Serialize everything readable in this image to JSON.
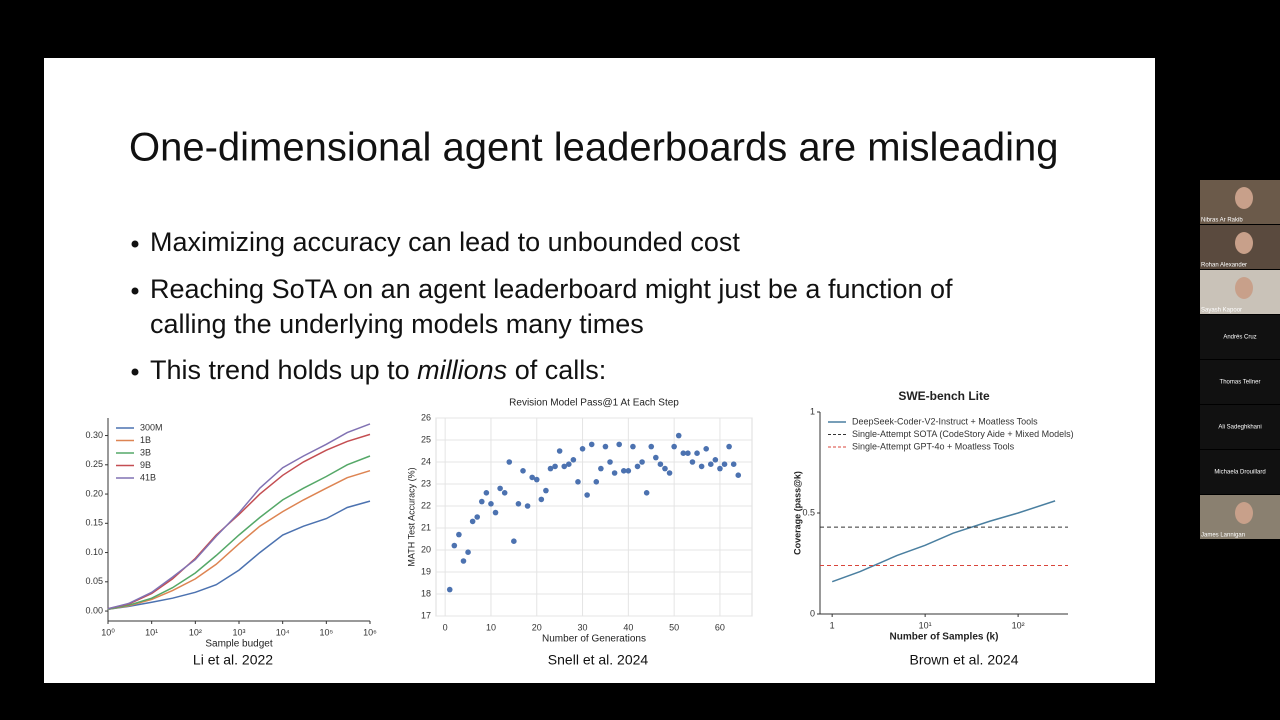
{
  "slide": {
    "title": "One-dimensional agent leaderboards are misleading",
    "bullets": [
      "Maximizing accuracy can lead to unbounded cost",
      "Reaching SoTA on an agent leaderboard might just be a function of",
      "calling the underlying models many times",
      {
        "before": "This trend holds up to ",
        "emphasis": "millions",
        "after": " of calls:"
      }
    ],
    "captions": [
      "Li et al. 2022",
      "Snell et al. 2024",
      "Brown et al. 2024"
    ]
  },
  "participants": [
    "Nibras Ar Rakib",
    "Rohan Alexander",
    "Sayash Kapoor",
    "Andrés Cruz",
    "Thomas Tellner",
    "Ali Sadeghkhani",
    "Michaela Drouillard",
    "James Lannigan"
  ],
  "chart_data": [
    {
      "type": "line",
      "xscale": "log",
      "x_label": "Sample budget",
      "x": [
        1,
        3,
        10,
        30,
        100,
        300,
        1000,
        3000,
        10000,
        30000,
        100000,
        300000,
        1000000
      ],
      "series": [
        {
          "name": "300M",
          "color": "#4c72b0",
          "values": [
            0.003,
            0.008,
            0.015,
            0.022,
            0.032,
            0.045,
            0.07,
            0.1,
            0.13,
            0.145,
            0.158,
            0.177,
            0.188
          ]
        },
        {
          "name": "1B",
          "color": "#dd8452",
          "values": [
            0.003,
            0.009,
            0.02,
            0.035,
            0.055,
            0.08,
            0.115,
            0.145,
            0.17,
            0.19,
            0.21,
            0.228,
            0.24
          ]
        },
        {
          "name": "3B",
          "color": "#55a868",
          "values": [
            0.003,
            0.01,
            0.022,
            0.04,
            0.065,
            0.095,
            0.13,
            0.16,
            0.19,
            0.21,
            0.23,
            0.25,
            0.265
          ]
        },
        {
          "name": "9B",
          "color": "#c44e52",
          "values": [
            0.004,
            0.012,
            0.03,
            0.055,
            0.09,
            0.13,
            0.165,
            0.2,
            0.232,
            0.255,
            0.275,
            0.29,
            0.302
          ]
        },
        {
          "name": "41B",
          "color": "#8172b3",
          "values": [
            0.004,
            0.013,
            0.032,
            0.058,
            0.088,
            0.128,
            0.168,
            0.21,
            0.245,
            0.265,
            0.285,
            0.305,
            0.32
          ]
        }
      ],
      "xlim": [
        1,
        1000000
      ],
      "ylim": [
        -0.017,
        0.33
      ],
      "xticks": [
        {
          "value": 1,
          "label": "10⁰"
        },
        {
          "value": 10,
          "label": "10¹"
        },
        {
          "value": 100,
          "label": "10²"
        },
        {
          "value": 1000,
          "label": "10³"
        },
        {
          "value": 10000,
          "label": "10⁴"
        },
        {
          "value": 100000,
          "label": "10⁵"
        },
        {
          "value": 1000000,
          "label": "10⁶"
        }
      ],
      "yticks": [
        {
          "value": 0,
          "label": "0.00"
        },
        {
          "value": 0.05,
          "label": "0.05"
        },
        {
          "value": 0.1,
          "label": "0.10"
        },
        {
          "value": 0.15,
          "label": "0.15"
        },
        {
          "value": 0.2,
          "label": "0.20"
        },
        {
          "value": 0.25,
          "label": "0.25"
        },
        {
          "value": 0.3,
          "label": "0.30"
        }
      ],
      "grid": false,
      "legend": "upper left"
    },
    {
      "type": "scatter",
      "title": "Revision Model Pass@1 At Each Step",
      "x_label": "Number of Generations",
      "y_label": "MATH Test Accuracy (%)",
      "color": "#4c72b0",
      "x": [
        1,
        2,
        3,
        4,
        5,
        6,
        7,
        8,
        9,
        10,
        11,
        12,
        13,
        14,
        15,
        16,
        17,
        18,
        19,
        20,
        21,
        22,
        23,
        24,
        25,
        26,
        27,
        28,
        29,
        30,
        31,
        32,
        33,
        34,
        35,
        36,
        37,
        38,
        39,
        40,
        41,
        42,
        43,
        44,
        45,
        46,
        47,
        48,
        49,
        50,
        51,
        52,
        53,
        54,
        55,
        56,
        57,
        58,
        59,
        60,
        61,
        62,
        63,
        64
      ],
      "values": [
        18.2,
        20.2,
        20.7,
        19.5,
        19.9,
        21.3,
        21.5,
        22.2,
        22.6,
        22.1,
        21.7,
        22.8,
        22.6,
        24.0,
        20.4,
        22.1,
        23.6,
        22.0,
        23.3,
        23.2,
        22.3,
        22.7,
        23.7,
        23.8,
        24.5,
        23.8,
        23.9,
        24.1,
        23.1,
        24.6,
        22.5,
        24.8,
        23.1,
        23.7,
        24.7,
        24.0,
        23.5,
        24.8,
        23.6,
        23.6,
        24.7,
        23.8,
        24.0,
        22.6,
        24.7,
        24.2,
        23.9,
        23.7,
        23.5,
        24.7,
        25.2,
        24.4,
        24.4,
        24.0,
        24.4,
        23.8,
        24.6,
        23.9,
        24.1,
        23.7,
        23.9,
        24.7,
        23.9,
        23.4
      ],
      "xlim": [
        -2,
        67
      ],
      "ylim": [
        17,
        26
      ],
      "xticks": [
        0,
        10,
        20,
        30,
        40,
        50,
        60
      ],
      "yticks": [
        17,
        18,
        19,
        20,
        21,
        22,
        23,
        24,
        25,
        26
      ],
      "grid": true
    },
    {
      "type": "line",
      "title": "SWE-bench Lite",
      "xscale": "log",
      "x_label": "Number of Samples (k)",
      "y_label": "Coverage (pass@k)",
      "series": [
        {
          "name": "DeepSeek-Coder-V2-Instruct + Moatless Tools",
          "color": "#4a7fa0",
          "x": [
            1,
            2,
            5,
            10,
            20,
            50,
            100,
            250
          ],
          "values": [
            0.16,
            0.21,
            0.29,
            0.34,
            0.4,
            0.46,
            0.5,
            0.56
          ]
        }
      ],
      "hlines": [
        {
          "name": "Single-Attempt SOTA (CodeStory Aide + Mixed Models)",
          "color": "#333333",
          "value": 0.43
        },
        {
          "name": "Single-Attempt GPT-4o + Moatless Tools",
          "color": "#d9453b",
          "value": 0.24
        }
      ],
      "xlim": [
        0.74,
        344
      ],
      "ylim": [
        0,
        1
      ],
      "xticks": [
        1,
        {
          "value": 10,
          "label": "10¹"
        },
        {
          "value": 100,
          "label": "10²"
        }
      ],
      "yticks": [
        0,
        0.5,
        1
      ],
      "grid": false,
      "legend": "upper left"
    }
  ]
}
